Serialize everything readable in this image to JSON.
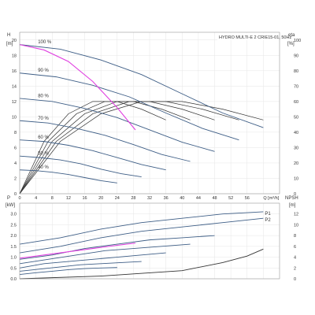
{
  "chart_data": [
    {
      "type": "line",
      "title": "HYDRO MULTI-E 2 CRIE15-01, 50Hz",
      "xlabel": "Q [m³/h]",
      "ylabel_left": "H",
      "unit_left": "[m]",
      "ylabel_right": "eta",
      "unit_right": "[%]",
      "xlim": [
        0,
        64
      ],
      "ylim_left": [
        0,
        21
      ],
      "ylim_right": [
        0,
        105
      ],
      "x_ticks": [
        0,
        4,
        8,
        12,
        16,
        20,
        24,
        28,
        32,
        36,
        40,
        44,
        48,
        52,
        56,
        60
      ],
      "x_tick_labels": [
        "0",
        "4",
        "8",
        "12",
        "16",
        "20",
        "24",
        "28",
        "32",
        "36",
        "40",
        "44",
        "48",
        "52",
        "56",
        "Q [m³/h]"
      ],
      "y_left_ticks": [
        0,
        2,
        4,
        6,
        8,
        10,
        12,
        14,
        16,
        18,
        20
      ],
      "y_right_ticks": [
        0,
        10,
        20,
        30,
        40,
        50,
        60,
        70,
        80,
        90,
        100
      ],
      "speed_labels": [
        "100 %",
        "90 %",
        "80 %",
        "70 %",
        "60 %",
        "50 %",
        "40 %"
      ],
      "grid": true,
      "head_curves": [
        {
          "speed": 1.0,
          "x": [
            0,
            10,
            20,
            30,
            40,
            50,
            60
          ],
          "y": [
            19.4,
            18.8,
            17.4,
            15.5,
            13.0,
            10.5,
            8.6
          ]
        },
        {
          "speed": 0.9,
          "x": [
            0,
            9,
            18,
            27,
            36,
            45,
            54
          ],
          "y": [
            15.7,
            15.2,
            14.1,
            12.6,
            10.5,
            8.5,
            7.0
          ]
        },
        {
          "speed": 0.8,
          "x": [
            0,
            8,
            16,
            24,
            32,
            40,
            48
          ],
          "y": [
            12.4,
            12.0,
            11.1,
            9.9,
            8.3,
            6.7,
            5.5
          ]
        },
        {
          "speed": 0.7,
          "x": [
            0,
            7,
            14,
            21,
            28,
            35,
            42
          ],
          "y": [
            9.5,
            9.2,
            8.5,
            7.6,
            6.4,
            5.1,
            4.2
          ]
        },
        {
          "speed": 0.6,
          "x": [
            0,
            6,
            12,
            18,
            24,
            30,
            36
          ],
          "y": [
            7.0,
            6.8,
            6.3,
            5.6,
            4.7,
            3.8,
            3.1
          ]
        },
        {
          "speed": 0.5,
          "x": [
            0,
            5,
            10,
            15,
            20,
            25,
            30
          ],
          "y": [
            4.9,
            4.7,
            4.4,
            3.9,
            3.2,
            2.6,
            2.2
          ]
        },
        {
          "speed": 0.4,
          "x": [
            0,
            4,
            8,
            12,
            16,
            20,
            24
          ],
          "y": [
            3.1,
            3.0,
            2.8,
            2.5,
            2.1,
            1.7,
            1.4
          ]
        }
      ],
      "max_pressure_curve": {
        "x": [
          0,
          6,
          12,
          18,
          24,
          28.5
        ],
        "y": [
          19.4,
          18.7,
          17.2,
          14.6,
          11.2,
          8.3
        ]
      },
      "efficiency_curves": [
        {
          "x": [
            0,
            10,
            20,
            30,
            40,
            50,
            60
          ],
          "eta": [
            0,
            34,
            52,
            60,
            60,
            55,
            48
          ]
        },
        {
          "x": [
            0,
            9,
            18,
            27,
            36,
            45,
            54
          ],
          "eta": [
            0,
            34,
            52,
            60,
            60,
            55,
            48
          ]
        },
        {
          "x": [
            0,
            8,
            16,
            24,
            32,
            40,
            48
          ],
          "eta": [
            0,
            34,
            52,
            60,
            60,
            55,
            48
          ]
        },
        {
          "x": [
            0,
            7,
            14,
            21,
            28,
            35,
            42
          ],
          "eta": [
            0,
            34,
            52,
            60,
            60,
            55,
            48
          ]
        },
        {
          "x": [
            0,
            6,
            12,
            18,
            24,
            30,
            36
          ],
          "eta": [
            0,
            34,
            52,
            60,
            60,
            55,
            48
          ]
        }
      ]
    },
    {
      "type": "line",
      "ylabel_left": "P",
      "unit_left": "[kW]",
      "ylabel_right": "NPSH",
      "unit_right": "[m]",
      "xlim": [
        0,
        64
      ],
      "ylim_left": [
        0,
        3.5
      ],
      "ylim_right": [
        0,
        14
      ],
      "y_left_ticks": [
        0,
        0.5,
        1.0,
        1.5,
        2.0,
        2.5,
        3.0
      ],
      "y_left_tick_labels": [
        "0.0",
        "0.5",
        "1.0",
        "1.5",
        "2.0",
        "2.5",
        "3.0"
      ],
      "y_right_ticks": [
        0,
        2,
        4,
        6,
        8,
        10,
        12
      ],
      "series_labels": [
        "P1",
        "P2"
      ],
      "grid": true,
      "power_curves": [
        {
          "name": "P1",
          "x": [
            0,
            10,
            20,
            30,
            40,
            50,
            60
          ],
          "y": [
            1.6,
            1.9,
            2.3,
            2.6,
            2.8,
            3.0,
            3.1
          ]
        },
        {
          "name": "P2",
          "x": [
            0,
            10,
            20,
            30,
            40,
            50,
            60
          ],
          "y": [
            1.2,
            1.5,
            1.9,
            2.2,
            2.4,
            2.6,
            2.8
          ]
        },
        {
          "x": [
            0,
            8,
            16,
            24,
            32,
            40,
            48
          ],
          "y": [
            0.9,
            1.1,
            1.4,
            1.6,
            1.8,
            1.9,
            2.0
          ]
        },
        {
          "x": [
            0,
            7,
            14,
            21,
            28,
            35,
            42
          ],
          "y": [
            0.7,
            0.9,
            1.1,
            1.3,
            1.4,
            1.5,
            1.6
          ]
        },
        {
          "x": [
            0,
            6,
            12,
            18,
            24,
            30,
            36
          ],
          "y": [
            0.5,
            0.7,
            0.8,
            0.9,
            1.0,
            1.1,
            1.2
          ]
        },
        {
          "x": [
            0,
            5,
            10,
            15,
            20,
            25,
            30
          ],
          "y": [
            0.35,
            0.45,
            0.55,
            0.65,
            0.7,
            0.75,
            0.8
          ]
        },
        {
          "x": [
            0,
            4,
            8,
            12,
            16,
            20,
            24
          ],
          "y": [
            0.2,
            0.28,
            0.35,
            0.42,
            0.47,
            0.5,
            0.52
          ]
        }
      ],
      "max_power_curve": {
        "x": [
          0,
          6,
          12,
          18,
          24,
          28.5
        ],
        "y": [
          0.95,
          1.1,
          1.25,
          1.4,
          1.55,
          1.65
        ]
      },
      "npsh_curve": {
        "x": [
          0,
          20,
          40,
          50,
          56,
          60
        ],
        "y": [
          0,
          0.5,
          1.5,
          3.0,
          4.2,
          5.5
        ]
      }
    }
  ]
}
